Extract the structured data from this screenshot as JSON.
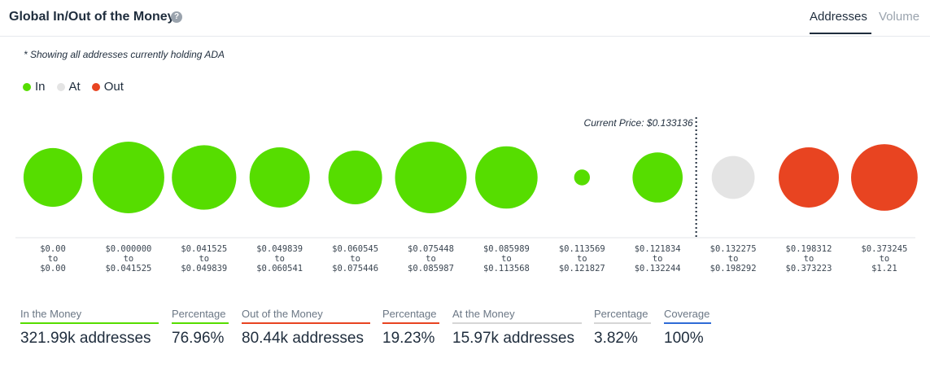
{
  "header": {
    "title": "Global In/Out of the Money",
    "help_icon": "question-circle-icon",
    "help_glyph": "?",
    "tabs": [
      {
        "label": "Addresses",
        "active": true
      },
      {
        "label": "Volume",
        "active": false
      }
    ]
  },
  "note": "* Showing all addresses currently holding ADA",
  "legend": [
    {
      "label": "In",
      "color": "#56dd00"
    },
    {
      "label": "At",
      "color": "#e4e4e4"
    },
    {
      "label": "Out",
      "color": "#e84421"
    }
  ],
  "chart_data": {
    "type": "bubble",
    "current_price_label": "Current Price: $0.133136",
    "current_price_after_bin_index": 8,
    "bins": [
      {
        "from": "$0.00",
        "to": "$0.00",
        "status": "in",
        "relative_size": 0.82
      },
      {
        "from": "$0.000000",
        "to": "$0.041525",
        "status": "in",
        "relative_size": 1.0
      },
      {
        "from": "$0.041525",
        "to": "$0.049839",
        "status": "in",
        "relative_size": 0.9
      },
      {
        "from": "$0.049839",
        "to": "$0.060541",
        "status": "in",
        "relative_size": 0.84
      },
      {
        "from": "$0.060545",
        "to": "$0.075446",
        "status": "in",
        "relative_size": 0.75
      },
      {
        "from": "$0.075448",
        "to": "$0.085987",
        "status": "in",
        "relative_size": 1.0
      },
      {
        "from": "$0.085989",
        "to": "$0.113568",
        "status": "in",
        "relative_size": 0.87
      },
      {
        "from": "$0.113569",
        "to": "$0.121827",
        "status": "in",
        "relative_size": 0.22
      },
      {
        "from": "$0.121834",
        "to": "$0.132244",
        "status": "in",
        "relative_size": 0.7
      },
      {
        "from": "$0.132275",
        "to": "$0.198292",
        "status": "at",
        "relative_size": 0.6
      },
      {
        "from": "$0.198312",
        "to": "$0.373223",
        "status": "out",
        "relative_size": 0.84
      },
      {
        "from": "$0.373245",
        "to": "$1.21",
        "status": "out",
        "relative_size": 0.93
      }
    ],
    "to_word": "to"
  },
  "stats": [
    {
      "label": "In the Money",
      "value": "321.99k addresses",
      "color": "#56dd00"
    },
    {
      "label": "Percentage",
      "value": "76.96%",
      "color": "#56dd00"
    },
    {
      "label": "Out of the Money",
      "value": "80.44k addresses",
      "color": "#e84421"
    },
    {
      "label": "Percentage",
      "value": "19.23%",
      "color": "#e84421"
    },
    {
      "label": "At the Money",
      "value": "15.97k addresses",
      "color": "#d6d6d6"
    },
    {
      "label": "Percentage",
      "value": "3.82%",
      "color": "#d6d6d6"
    },
    {
      "label": "Coverage",
      "value": "100%",
      "color": "#2f6bd6"
    }
  ]
}
